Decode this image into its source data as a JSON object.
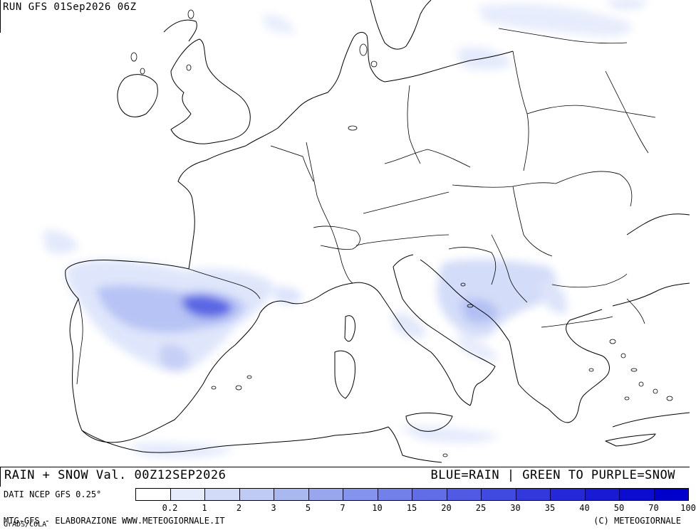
{
  "header": {
    "run_label": "RUN GFS 01Sep2026 06Z"
  },
  "title": {
    "left": "RAIN + SNOW Val. 00Z12SEP2026",
    "right": "BLUE=RAIN | GREEN TO PURPLE=SNOW"
  },
  "legend": {
    "source_label": "DATI NCEP GFS 0.25°",
    "ticks": [
      "0.2",
      "1",
      "2",
      "3",
      "5",
      "7",
      "10",
      "15",
      "20",
      "25",
      "30",
      "35",
      "40",
      "50",
      "70",
      "100"
    ],
    "colors": [
      "#ffffff",
      "#e6ecfb",
      "#d2dcf8",
      "#bfcaf5",
      "#aab8f2",
      "#97a6ef",
      "#8493ec",
      "#7280e9",
      "#606de6",
      "#505ae3",
      "#4049e0",
      "#3238dc",
      "#2428d8",
      "#181ad4",
      "#0c0cd0",
      "#0000cc"
    ]
  },
  "footer": {
    "left": "MTG-GFS - ELABORAZIONE WWW.METEOGIORNALE.IT",
    "left_sub": "GrADS/COLA",
    "right": "(C) METEOGIORNALE"
  }
}
